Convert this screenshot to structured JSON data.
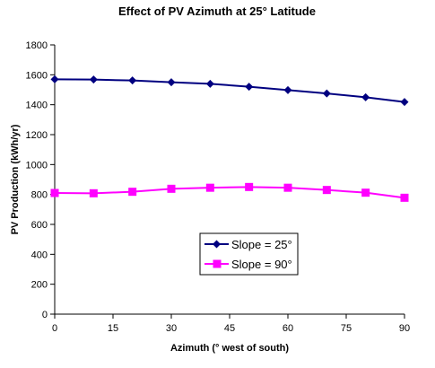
{
  "chart_data": {
    "type": "line",
    "title": "Effect of PV Azimuth at 25° Latitude",
    "xlabel": "Azimuth (° west of south)",
    "ylabel": "PV Production (kWh/yr)",
    "x_ticks": [
      "0",
      "15",
      "30",
      "45",
      "60",
      "75",
      "90"
    ],
    "y_ticks": [
      "0",
      "200",
      "400",
      "600",
      "800",
      "1000",
      "1200",
      "1400",
      "1600",
      "1800"
    ],
    "xlim": [
      0,
      90
    ],
    "ylim": [
      0,
      1800
    ],
    "grid": "none",
    "legend_position": "center",
    "x": [
      0,
      10,
      20,
      30,
      40,
      50,
      60,
      70,
      80,
      90
    ],
    "series": [
      {
        "name": "Slope = 25°",
        "color": "#000080",
        "marker": "diamond",
        "values": [
          1570,
          1568,
          1562,
          1550,
          1540,
          1520,
          1498,
          1475,
          1450,
          1418
        ]
      },
      {
        "name": "Slope = 90°",
        "color": "#FF00FF",
        "marker": "square",
        "values": [
          810,
          808,
          818,
          838,
          845,
          850,
          845,
          830,
          812,
          778
        ]
      }
    ]
  }
}
